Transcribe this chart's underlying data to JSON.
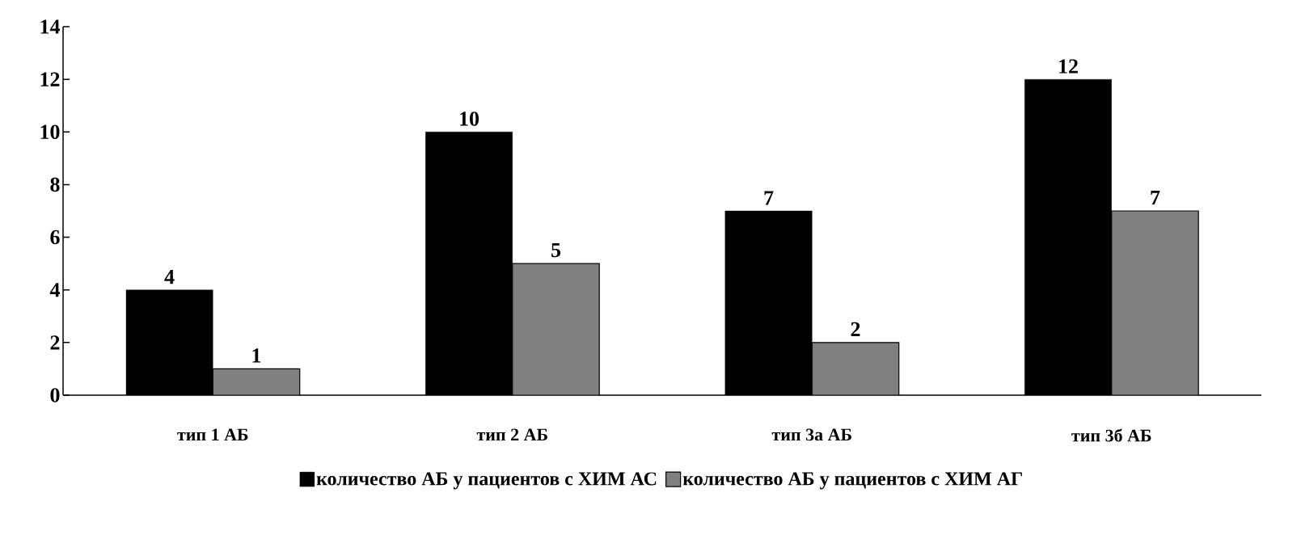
{
  "chart_data": {
    "type": "bar",
    "categories": [
      "тип 1 АБ",
      "тип 2 АБ",
      "тип 3а АБ",
      "тип 3б АБ"
    ],
    "series": [
      {
        "name": "количество АБ у пациентов с ХИМ АС",
        "color": "#000000",
        "values": [
          4,
          10,
          7,
          12
        ]
      },
      {
        "name": "количество АБ у пациентов с ХИМ АГ",
        "color": "#808080",
        "values": [
          1,
          5,
          2,
          7
        ]
      }
    ],
    "ylim": [
      0,
      14
    ],
    "yticks": [
      0,
      2,
      4,
      6,
      8,
      10,
      12,
      14
    ],
    "data_labels": true,
    "grid": false,
    "legend": "bottom"
  }
}
